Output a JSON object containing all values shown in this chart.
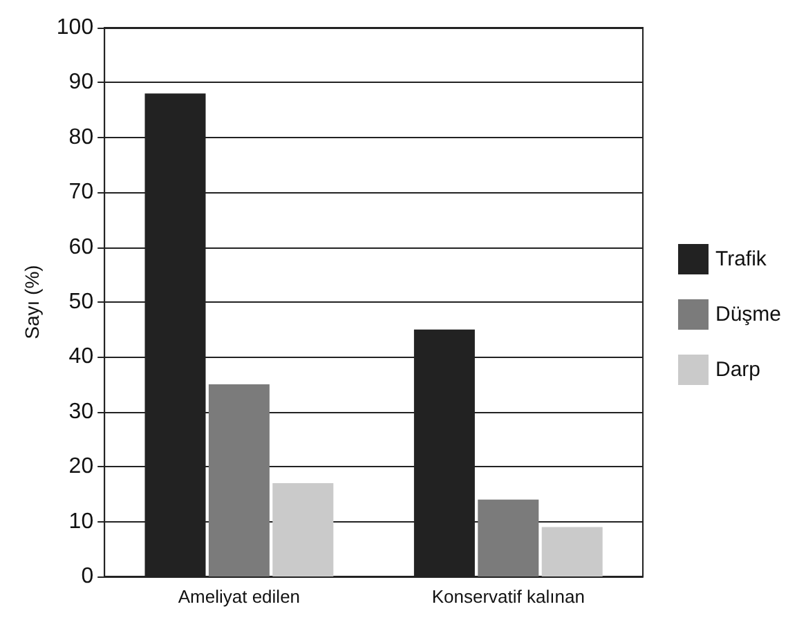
{
  "chart_data": {
    "type": "bar",
    "ylabel": "Sayı (%)",
    "categories": [
      "Ameliyat edilen",
      "Konservatif kalınan"
    ],
    "series": [
      {
        "name": "Trafik",
        "color": "#222222",
        "values": [
          88,
          45
        ]
      },
      {
        "name": "Düşme",
        "color": "#7b7b7b",
        "values": [
          35,
          14
        ]
      },
      {
        "name": "Darp",
        "color": "#cacaca",
        "values": [
          17,
          9
        ]
      }
    ],
    "ylim": [
      0,
      100
    ],
    "yticks": [
      0,
      10,
      20,
      30,
      40,
      50,
      60,
      70,
      80,
      90,
      100
    ],
    "grid": "y",
    "legend": "right"
  }
}
